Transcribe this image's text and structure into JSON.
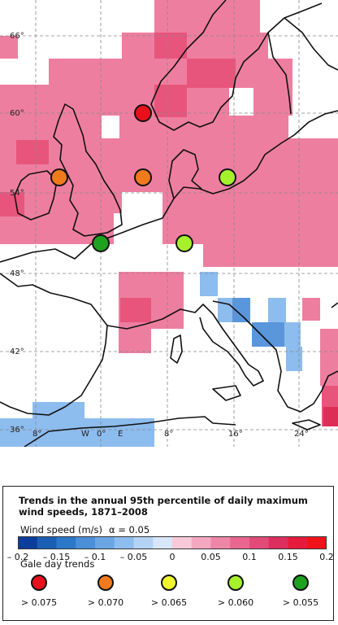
{
  "map": {
    "lat_labels": [
      "66°",
      "60°",
      "54°",
      "48°",
      "42°",
      "36°"
    ],
    "lon_labels": [
      "8°",
      "W",
      "0°",
      "E",
      "8°",
      "16°",
      "24°"
    ],
    "gale_points": [
      {
        "name": "north-sea-north",
        "class": "> 0.075",
        "color": "#e8101b"
      },
      {
        "name": "irish-sea",
        "class": "> 0.070",
        "color": "#f07a1c"
      },
      {
        "name": "north-sea-central",
        "class": "> 0.070",
        "color": "#f07a1c"
      },
      {
        "name": "baltic",
        "class": "> 0.060",
        "color": "#a6f02c"
      },
      {
        "name": "central-europe",
        "class": "> 0.060",
        "color": "#a6f02c"
      },
      {
        "name": "english-channel",
        "class": "> 0.055",
        "color": "#1ea11e"
      }
    ]
  },
  "legend": {
    "title_line1": "Trends in the annual 95th percentile of daily maximum",
    "title_line2": "wind speeds, 1871–2008",
    "wind_label": "Wind speed (m/s)",
    "alpha_label": "α = 0.05",
    "colorbar_colors": [
      "#0b3e9c",
      "#1a5fb4",
      "#2b78c8",
      "#4b8fd8",
      "#6aa6e4",
      "#8dbcee",
      "#b3d2f4",
      "#d7e6f8",
      "#f8c9d8",
      "#f4a7c0",
      "#ee86a8",
      "#e86690",
      "#e24a79",
      "#dd2e60",
      "#e61a3c",
      "#f2121a"
    ],
    "tick_labels": [
      "– 0.2",
      "– 0.15",
      "– 0.1",
      "– 0.05",
      "0",
      "0.05",
      "0.1",
      "0.15",
      "0.2"
    ],
    "gale_title": "Gale day trends",
    "gale_items": [
      {
        "label": "> 0.075",
        "color": "#e8101b"
      },
      {
        "label": "> 0.070",
        "color": "#f07a1c"
      },
      {
        "label": "> 0.065",
        "color": "#eef52e"
      },
      {
        "label": "> 0.060",
        "color": "#a6f02c"
      },
      {
        "label": "> 0.055",
        "color": "#1ea11e"
      }
    ]
  }
}
